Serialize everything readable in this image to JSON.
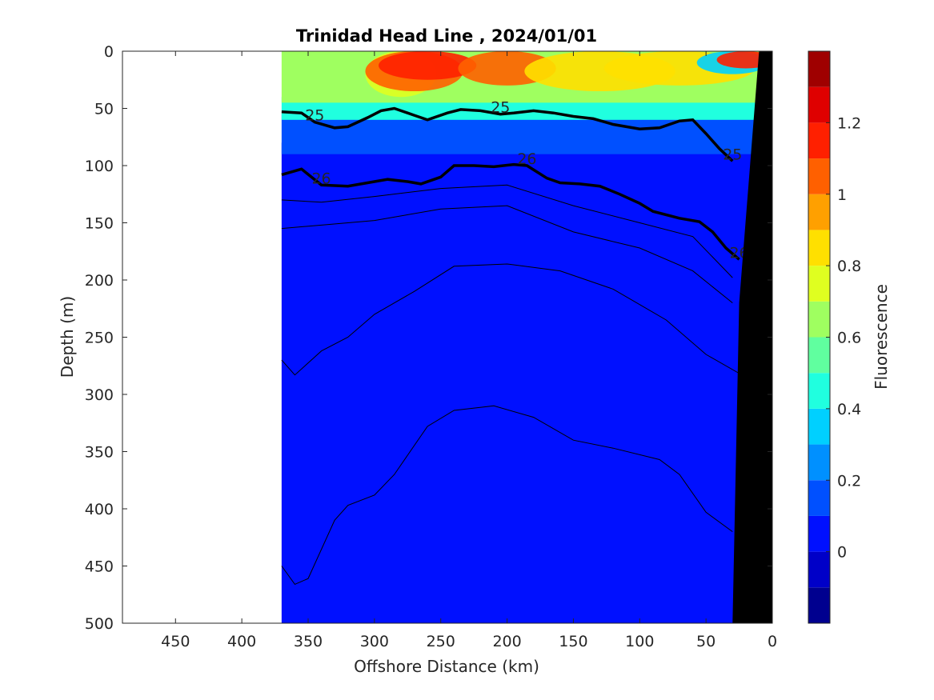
{
  "chart_data": {
    "type": "contour_section",
    "title": "Trinidad Head Line , 2024/01/01",
    "xlabel": "Offshore Distance (km)",
    "ylabel": "Depth (m)",
    "colorbar_label": "Fluorescence",
    "xlim": [
      490,
      0
    ],
    "ylim": [
      500,
      0
    ],
    "x_reversed": true,
    "y_reversed": true,
    "x_ticks": [
      450,
      400,
      350,
      300,
      250,
      200,
      150,
      100,
      50,
      0
    ],
    "y_ticks": [
      0,
      50,
      100,
      150,
      200,
      250,
      300,
      350,
      400,
      450,
      500
    ],
    "data_extent_x_km": [
      370,
      0
    ],
    "colorbar": {
      "range": [
        -0.2,
        1.4
      ],
      "ticks": [
        0,
        0.2,
        0.4,
        0.6,
        0.8,
        1,
        1.2
      ],
      "tick_labels": [
        "0",
        "0.2",
        "0.4",
        "0.6",
        "0.8",
        "1",
        "1.2"
      ],
      "levels": [
        -0.2,
        -0.1,
        0,
        0.1,
        0.2,
        0.3,
        0.4,
        0.5,
        0.6,
        0.7,
        0.8,
        0.9,
        1.0,
        1.1,
        1.2,
        1.3,
        1.4
      ],
      "colors": [
        "#00008f",
        "#0000c8",
        "#0010ff",
        "#0050ff",
        "#0090ff",
        "#00d0ff",
        "#20ffdf",
        "#60ff9f",
        "#9fff60",
        "#dfff20",
        "#ffe000",
        "#ffa000",
        "#ff6000",
        "#ff2000",
        "#df0000",
        "#9f0000"
      ]
    },
    "fluorescence_layers": [
      {
        "label": "layer_top",
        "color": "#9fff60",
        "depth_range_m": [
          0,
          45
        ]
      },
      {
        "label": "layer_transition",
        "color": "#20ffdf",
        "depth_range_m": [
          40,
          60
        ]
      },
      {
        "label": "layer_subsurface",
        "color": "#0050ff",
        "depth_range_m": [
          55,
          90
        ]
      },
      {
        "label": "layer_deep",
        "color": "#0010ff",
        "depth_range_m": [
          80,
          500
        ]
      }
    ],
    "labeled_isopycnals": [
      {
        "label": "25",
        "points": [
          [
            370,
            53
          ],
          [
            355,
            54
          ],
          [
            345,
            62
          ],
          [
            330,
            67
          ],
          [
            320,
            66
          ],
          [
            305,
            58
          ],
          [
            295,
            52
          ],
          [
            285,
            50
          ],
          [
            270,
            56
          ],
          [
            260,
            60
          ],
          [
            245,
            54
          ],
          [
            235,
            51
          ],
          [
            220,
            52
          ],
          [
            205,
            55
          ],
          [
            195,
            54
          ],
          [
            180,
            52
          ],
          [
            165,
            54
          ],
          [
            150,
            57
          ],
          [
            135,
            59
          ],
          [
            120,
            64
          ],
          [
            100,
            68
          ],
          [
            85,
            67
          ],
          [
            70,
            61
          ],
          [
            60,
            60
          ],
          [
            50,
            72
          ],
          [
            40,
            85
          ],
          [
            30,
            96
          ]
        ]
      },
      {
        "label": "26",
        "points": [
          [
            370,
            108
          ],
          [
            355,
            103
          ],
          [
            340,
            117
          ],
          [
            320,
            118
          ],
          [
            300,
            114
          ],
          [
            290,
            112
          ],
          [
            275,
            114
          ],
          [
            265,
            116
          ],
          [
            250,
            110
          ],
          [
            240,
            100
          ],
          [
            225,
            100
          ],
          [
            210,
            101
          ],
          [
            195,
            99
          ],
          [
            185,
            100
          ],
          [
            170,
            111
          ],
          [
            160,
            115
          ],
          [
            145,
            116
          ],
          [
            130,
            118
          ],
          [
            115,
            125
          ],
          [
            100,
            133
          ],
          [
            90,
            140
          ],
          [
            70,
            146
          ],
          [
            55,
            149
          ],
          [
            45,
            158
          ],
          [
            35,
            172
          ],
          [
            25,
            182
          ]
        ]
      }
    ],
    "thin_isopycnals": [
      [
        [
          370,
          130
        ],
        [
          340,
          132
        ],
        [
          300,
          127
        ],
        [
          250,
          120
        ],
        [
          200,
          117
        ],
        [
          150,
          135
        ],
        [
          100,
          150
        ],
        [
          60,
          162
        ],
        [
          30,
          198
        ]
      ],
      [
        [
          370,
          155
        ],
        [
          340,
          152
        ],
        [
          300,
          148
        ],
        [
          250,
          138
        ],
        [
          200,
          135
        ],
        [
          150,
          158
        ],
        [
          100,
          172
        ],
        [
          60,
          192
        ],
        [
          30,
          220
        ]
      ],
      [
        [
          370,
          270
        ],
        [
          360,
          283
        ],
        [
          340,
          262
        ],
        [
          320,
          250
        ],
        [
          300,
          230
        ],
        [
          270,
          210
        ],
        [
          240,
          188
        ],
        [
          200,
          186
        ],
        [
          160,
          192
        ],
        [
          120,
          208
        ],
        [
          80,
          235
        ],
        [
          50,
          265
        ],
        [
          20,
          285
        ]
      ],
      [
        [
          370,
          450
        ],
        [
          360,
          466
        ],
        [
          350,
          461
        ],
        [
          330,
          410
        ],
        [
          320,
          397
        ],
        [
          300,
          388
        ],
        [
          285,
          370
        ],
        [
          260,
          328
        ],
        [
          240,
          314
        ],
        [
          210,
          310
        ],
        [
          180,
          320
        ],
        [
          150,
          340
        ],
        [
          120,
          347
        ],
        [
          85,
          357
        ],
        [
          70,
          370
        ],
        [
          50,
          403
        ],
        [
          30,
          420
        ]
      ]
    ],
    "bathymetry_color": "#000000"
  }
}
